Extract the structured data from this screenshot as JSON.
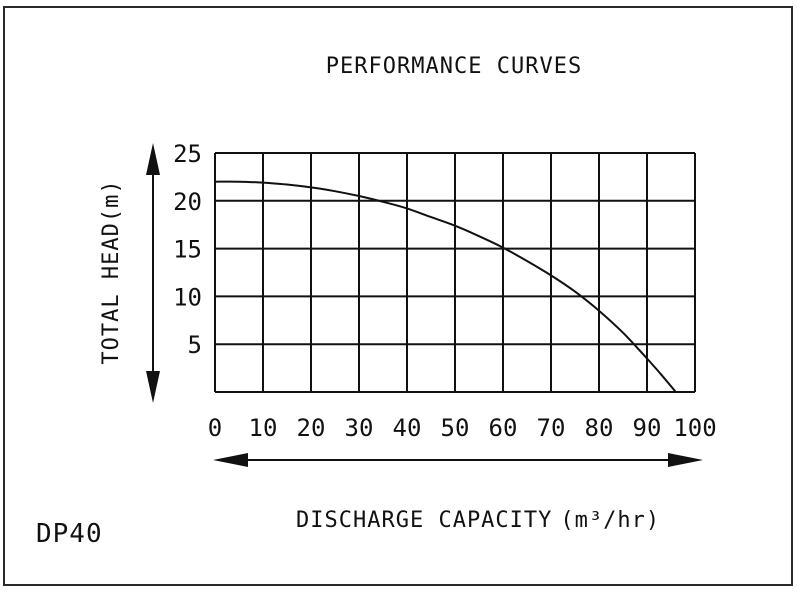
{
  "chart_data": {
    "type": "line",
    "title": "PERFORMANCE CURVES",
    "xlabel": "DISCHARGE CAPACITY",
    "xlabel_unit": "(m³/hr)",
    "ylabel": "TOTAL HEAD(m)",
    "model": "DP40",
    "xlim": [
      0,
      100
    ],
    "ylim": [
      0,
      25
    ],
    "x_ticks": [
      0,
      10,
      20,
      30,
      40,
      50,
      60,
      70,
      80,
      90,
      100
    ],
    "y_ticks": [
      5,
      10,
      15,
      20,
      25
    ],
    "grid": true,
    "series": [
      {
        "x": [
          0,
          5,
          10,
          15,
          20,
          25,
          30,
          35,
          40,
          45,
          50,
          55,
          60,
          65,
          70,
          75,
          80,
          85,
          90,
          93,
          96
        ],
        "y": [
          22,
          22,
          21.9,
          21.7,
          21.4,
          21,
          20.5,
          19.9,
          19.2,
          18.3,
          17.4,
          16.3,
          15.1,
          13.7,
          12.2,
          10.5,
          8.5,
          6.2,
          3.5,
          1.8,
          0
        ]
      }
    ]
  },
  "colors": {
    "line": "#111111",
    "grid": "#111111"
  }
}
